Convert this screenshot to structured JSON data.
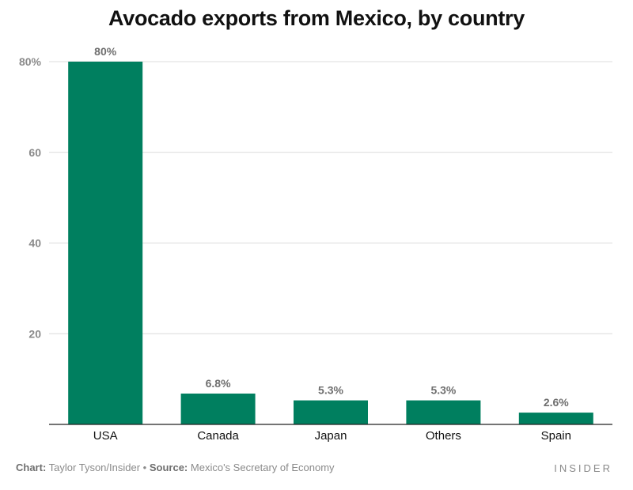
{
  "chart_data": {
    "type": "bar",
    "title": "Avocado exports from Mexico, by country",
    "categories": [
      "USA",
      "Canada",
      "Japan",
      "Others",
      "Spain"
    ],
    "values": [
      80,
      6.8,
      5.3,
      5.3,
      2.6
    ],
    "data_labels": [
      "80%",
      "6.8%",
      "5.3%",
      "5.3%",
      "2.6%"
    ],
    "yticks": [
      {
        "value": 20,
        "label": "20"
      },
      {
        "value": 40,
        "label": "40"
      },
      {
        "value": 60,
        "label": "60"
      },
      {
        "value": 80,
        "label": "80%"
      }
    ],
    "ylim": [
      0,
      80
    ],
    "grid": true,
    "bar_color": "#007f5f"
  },
  "footer": {
    "chart_label": "Chart:",
    "chart_credit": "Taylor Tyson/Insider",
    "separator": "•",
    "source_label": "Source:",
    "source_text": "Mexico's Secretary of Economy",
    "brand": "INSIDER"
  }
}
